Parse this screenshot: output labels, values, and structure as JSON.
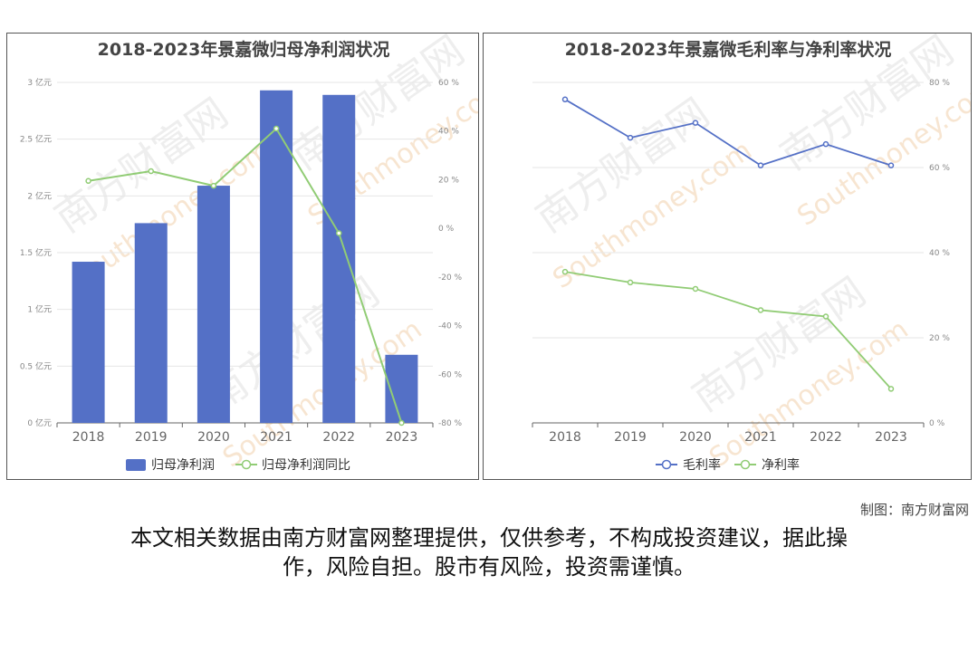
{
  "colors": {
    "bar": "#5470c6",
    "bar_dark": "#4a62b3",
    "line_green": "#91cc75",
    "line_blue": "#5470c6",
    "grid": "#e6e6e6",
    "watermark": "#ececec",
    "watermark_orange": "#f7e3cc"
  },
  "watermark": {
    "cn": "南方财富网",
    "en": "Southmoney.com"
  },
  "credit": "制图：南方财富网",
  "disclaimer": {
    "line1": "本文相关数据由南方财富网整理提供，仅供参考，不构成投资建议，据此操",
    "line2": "作，风险自担。股市有风险，投资需谨慎。"
  },
  "chart_data": [
    {
      "type": "bar",
      "title": "2018-2023年景嘉微归母净利润状况",
      "categories": [
        "2018",
        "2019",
        "2020",
        "2021",
        "2022",
        "2023"
      ],
      "series": [
        {
          "name": "归母净利润",
          "kind": "bar",
          "axis": "left",
          "values": [
            1.42,
            1.76,
            2.09,
            2.93,
            2.89,
            0.6
          ]
        },
        {
          "name": "归母净利润同比",
          "kind": "line",
          "axis": "right",
          "values": [
            19.5,
            23.5,
            17.5,
            41,
            -2,
            -80
          ]
        }
      ],
      "y_left": {
        "unit": "亿元",
        "ylim": [
          0,
          3
        ],
        "ticks": [
          "0 亿元",
          "0.5 亿元",
          "1 亿元",
          "1.5 亿元",
          "2 亿元",
          "2.5 亿元",
          "3 亿元"
        ]
      },
      "y_right": {
        "unit": "%",
        "ylim": [
          -80,
          60
        ],
        "ticks": [
          "-80 %",
          "-60 %",
          "-40 %",
          "-20 %",
          "0 %",
          "20 %",
          "40 %",
          "60 %"
        ]
      },
      "grid": true,
      "legend": "bottom"
    },
    {
      "type": "line",
      "title": "2018-2023年景嘉微毛利率与净利率状况",
      "categories": [
        "2018",
        "2019",
        "2020",
        "2021",
        "2022",
        "2023"
      ],
      "series": [
        {
          "name": "毛利率",
          "values": [
            76,
            67,
            70.5,
            60.5,
            65.5,
            60.5
          ]
        },
        {
          "name": "净利率",
          "values": [
            35.5,
            33,
            31.5,
            26.5,
            25,
            8
          ]
        }
      ],
      "y_right": {
        "unit": "%",
        "ylim": [
          0,
          80
        ],
        "ticks": [
          "0 %",
          "20 %",
          "40 %",
          "60 %",
          "80 %"
        ]
      },
      "grid": true,
      "legend": "bottom"
    }
  ]
}
